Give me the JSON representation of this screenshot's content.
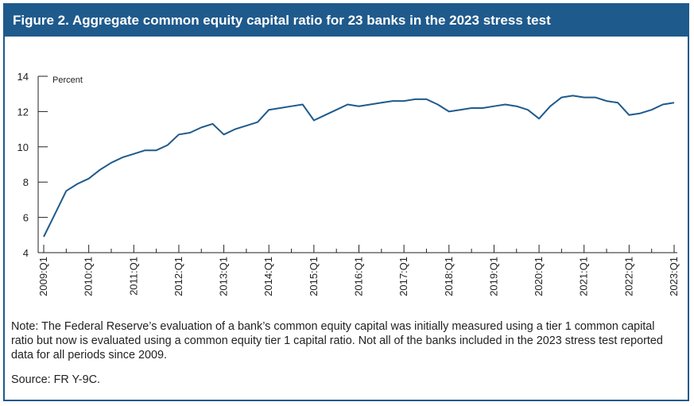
{
  "title": "Figure 2. Aggregate common equity capital ratio for 23 banks in the 2023 stress test",
  "note": "Note: The Federal Reserve’s evaluation of a bank’s common equity capital was initially measured using a tier 1 common capital ratio but now is evaluated using a common equity tier 1 capital ratio. Not all of the banks included in the 2023 stress test reported data for all periods since 2009.",
  "source": "Source: FR Y-9C.",
  "colors": {
    "header": "#1f5a8c",
    "line": "#1f5a8c",
    "axis": "#222222"
  },
  "chart_data": {
    "type": "line",
    "ylabel": "Percent",
    "ylim": [
      4,
      14
    ],
    "yticks": [
      "4",
      "6",
      "8",
      "10",
      "12",
      "14"
    ],
    "xticks": [
      "2009:Q1",
      "2010:Q1",
      "2011:Q1",
      "2012:Q1",
      "2013:Q1",
      "2014:Q1",
      "2015:Q1",
      "2016:Q1",
      "2017:Q1",
      "2018:Q1",
      "2019:Q1",
      "2020:Q1",
      "2021:Q1",
      "2022:Q1",
      "2023:Q1"
    ],
    "grid": false,
    "series": [
      {
        "values": [
          {
            "x": "2009:Q1",
            "y": 4.9
          },
          {
            "x": "2009:Q2",
            "y": 6.2
          },
          {
            "x": "2009:Q3",
            "y": 7.5
          },
          {
            "x": "2009:Q4",
            "y": 7.9
          },
          {
            "x": "2010:Q1",
            "y": 8.2
          },
          {
            "x": "2010:Q2",
            "y": 8.7
          },
          {
            "x": "2010:Q3",
            "y": 9.1
          },
          {
            "x": "2010:Q4",
            "y": 9.4
          },
          {
            "x": "2011:Q1",
            "y": 9.6
          },
          {
            "x": "2011:Q2",
            "y": 9.8
          },
          {
            "x": "2011:Q3",
            "y": 9.8
          },
          {
            "x": "2011:Q4",
            "y": 10.1
          },
          {
            "x": "2012:Q1",
            "y": 10.7
          },
          {
            "x": "2012:Q2",
            "y": 10.8
          },
          {
            "x": "2012:Q3",
            "y": 11.1
          },
          {
            "x": "2012:Q4",
            "y": 11.3
          },
          {
            "x": "2013:Q1",
            "y": 10.7
          },
          {
            "x": "2013:Q2",
            "y": 11.0
          },
          {
            "x": "2013:Q3",
            "y": 11.2
          },
          {
            "x": "2013:Q4",
            "y": 11.4
          },
          {
            "x": "2014:Q1",
            "y": 12.1
          },
          {
            "x": "2014:Q2",
            "y": 12.2
          },
          {
            "x": "2014:Q3",
            "y": 12.3
          },
          {
            "x": "2014:Q4",
            "y": 12.4
          },
          {
            "x": "2015:Q1",
            "y": 11.5
          },
          {
            "x": "2015:Q2",
            "y": 11.8
          },
          {
            "x": "2015:Q3",
            "y": 12.1
          },
          {
            "x": "2015:Q4",
            "y": 12.4
          },
          {
            "x": "2016:Q1",
            "y": 12.3
          },
          {
            "x": "2016:Q2",
            "y": 12.4
          },
          {
            "x": "2016:Q3",
            "y": 12.5
          },
          {
            "x": "2016:Q4",
            "y": 12.6
          },
          {
            "x": "2017:Q1",
            "y": 12.6
          },
          {
            "x": "2017:Q2",
            "y": 12.7
          },
          {
            "x": "2017:Q3",
            "y": 12.7
          },
          {
            "x": "2017:Q4",
            "y": 12.4
          },
          {
            "x": "2018:Q1",
            "y": 12.0
          },
          {
            "x": "2018:Q2",
            "y": 12.1
          },
          {
            "x": "2018:Q3",
            "y": 12.2
          },
          {
            "x": "2018:Q4",
            "y": 12.2
          },
          {
            "x": "2019:Q1",
            "y": 12.3
          },
          {
            "x": "2019:Q2",
            "y": 12.4
          },
          {
            "x": "2019:Q3",
            "y": 12.3
          },
          {
            "x": "2019:Q4",
            "y": 12.1
          },
          {
            "x": "2020:Q1",
            "y": 11.6
          },
          {
            "x": "2020:Q2",
            "y": 12.3
          },
          {
            "x": "2020:Q3",
            "y": 12.8
          },
          {
            "x": "2020:Q4",
            "y": 12.9
          },
          {
            "x": "2021:Q1",
            "y": 12.8
          },
          {
            "x": "2021:Q2",
            "y": 12.8
          },
          {
            "x": "2021:Q3",
            "y": 12.6
          },
          {
            "x": "2021:Q4",
            "y": 12.5
          },
          {
            "x": "2022:Q1",
            "y": 11.8
          },
          {
            "x": "2022:Q2",
            "y": 11.9
          },
          {
            "x": "2022:Q3",
            "y": 12.1
          },
          {
            "x": "2022:Q4",
            "y": 12.4
          },
          {
            "x": "2023:Q1",
            "y": 12.5
          }
        ]
      }
    ]
  }
}
